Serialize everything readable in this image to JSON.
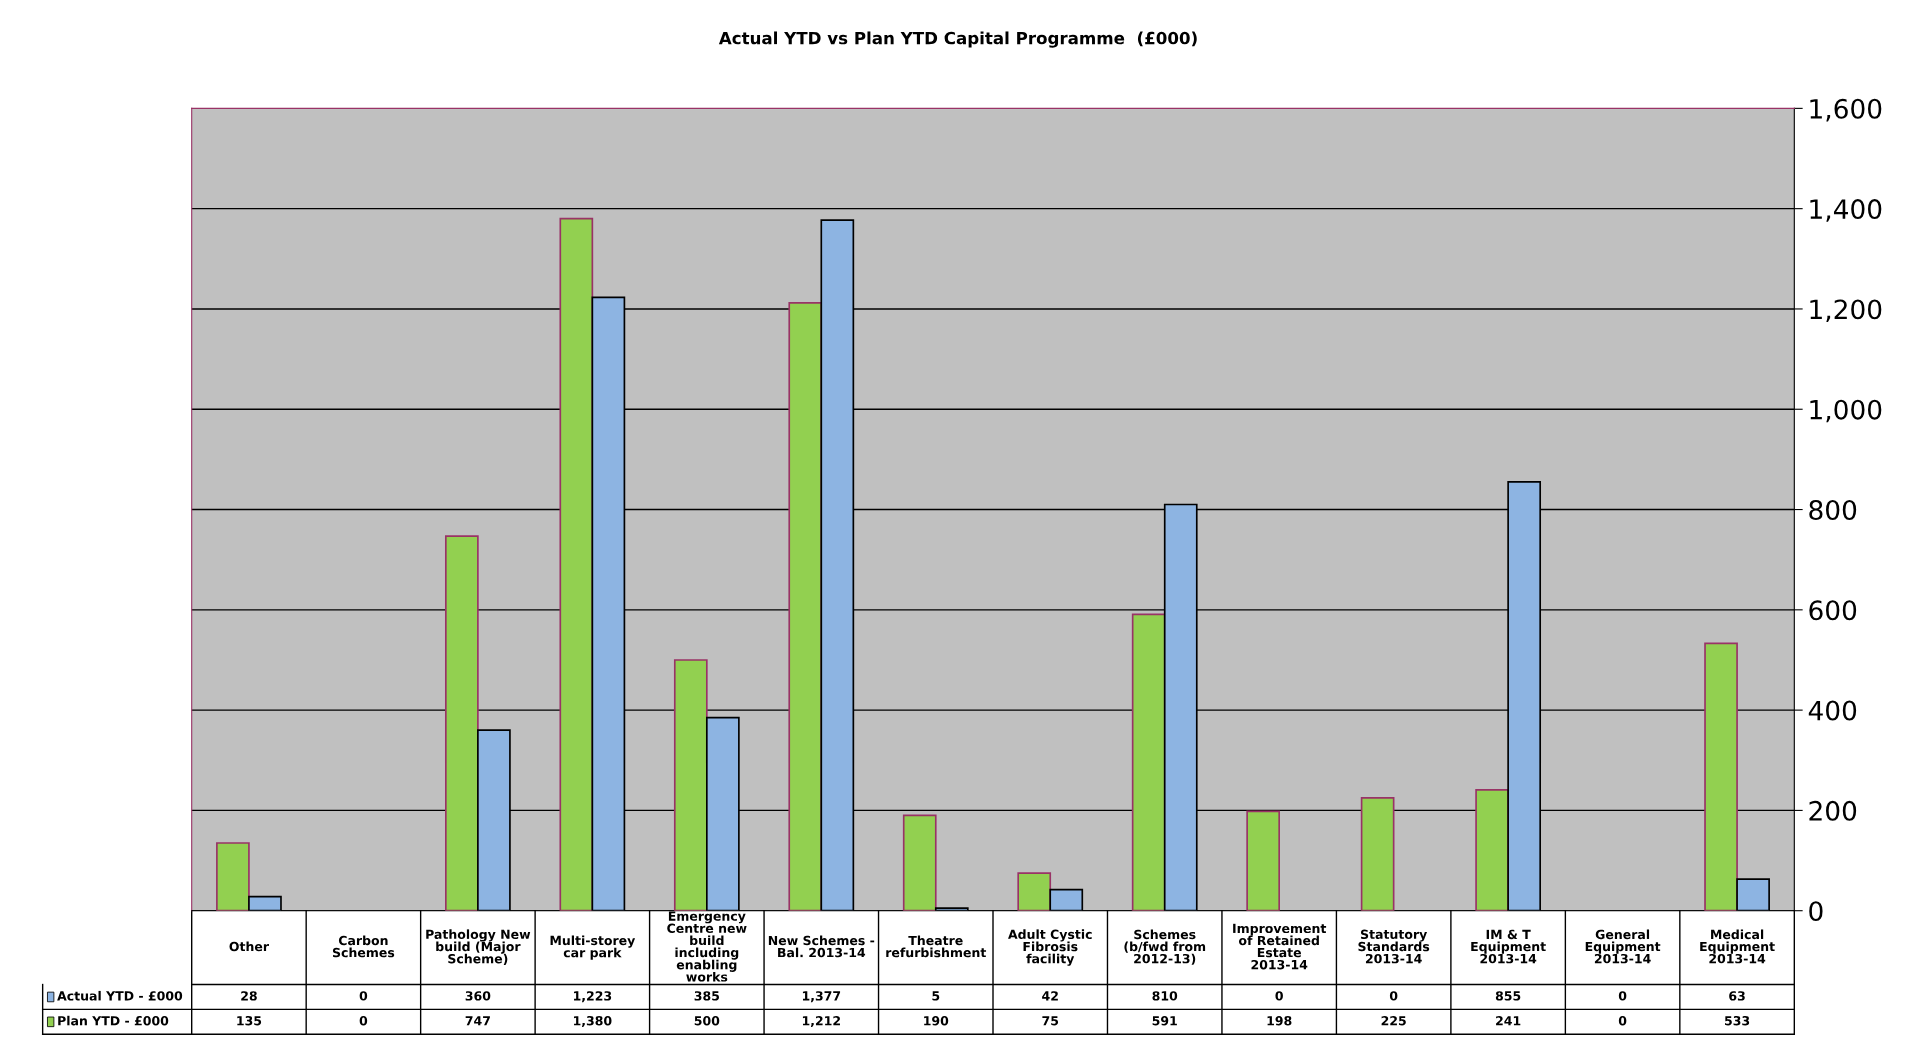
{
  "chart_data": {
    "type": "bar",
    "title": "Actual YTD vs Plan YTD Capital Programme  (£000)",
    "categories": [
      "Other",
      "Carbon Schemes",
      "Pathology New build (Major Scheme)",
      "Multi-storey car park",
      "Emergency Centre new build including enabling works",
      "New Schemes - Bal. 2013-14",
      "Theatre refurbishment",
      "Adult Cystic Fibrosis facility",
      "Schemes (b/fwd from 2012-13)",
      "Improvement of Retained Estate 2013-14",
      "Statutory Standards 2013-14",
      "IM & T Equipment 2013-14",
      "General Equipment 2013-14",
      "Medical Equipment 2013-14"
    ],
    "series": [
      {
        "name": "Plan YTD - £000",
        "color": "#92d050",
        "values": [
          135,
          0,
          747,
          1380,
          500,
          1212,
          190,
          75,
          591,
          198,
          225,
          241,
          0,
          533
        ],
        "value_labels": [
          "135",
          "0",
          "747",
          "1,380",
          "500",
          "1,212",
          "190",
          "75",
          "591",
          "198",
          "225",
          "241",
          "0",
          "533"
        ]
      },
      {
        "name": "Actual YTD - £000",
        "color": "#8db4e2",
        "values": [
          28,
          0,
          360,
          1223,
          385,
          1377,
          5,
          42,
          810,
          0,
          0,
          855,
          0,
          63
        ],
        "value_labels": [
          "28",
          "0",
          "360",
          "1,223",
          "385",
          "1,377",
          "5",
          "42",
          "810",
          "0",
          "0",
          "855",
          "0",
          "63"
        ]
      }
    ],
    "ylim": [
      0,
      1600
    ],
    "yticks": [
      0,
      200,
      400,
      600,
      800,
      {
        "value": 1000,
        "label": "1,000"
      },
      {
        "value": 1200,
        "label": "1,200"
      },
      {
        "value": 1400,
        "label": "1,400"
      },
      {
        "value": 1600,
        "label": "1,600"
      }
    ],
    "grid": "y",
    "legend": "bottom"
  }
}
